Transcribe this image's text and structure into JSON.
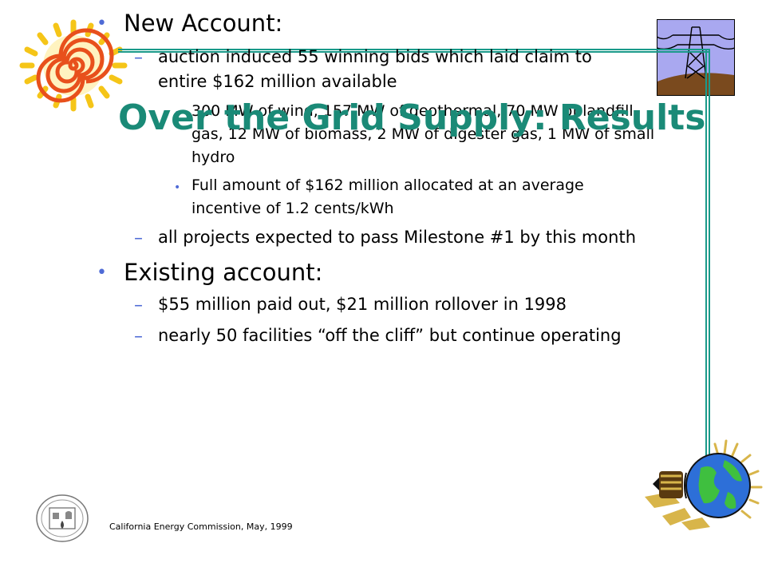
{
  "slide": {
    "title": "Over the Grid Supply: Results",
    "footer": "California Energy Commission, May, 1999",
    "accent_color": "#1a8a77",
    "bullet_color": "#4f6bd6"
  },
  "content": {
    "new_account": {
      "heading": "New Account:",
      "item1_line1": "auction induced 55 winning bids which laid claim to",
      "item1_line2": "entire $162 million available",
      "sub1_line1": "300 MW of wind, 157 MW of geothermal, 70 MW of landfill",
      "sub1_line2": "gas, 12 MW of biomass, 2 MW of digester gas, 1 MW of small",
      "sub1_line3": "hydro",
      "sub2_line1": "Full amount of $162 million allocated at an average",
      "sub2_line2": "incentive of 1.2 cents/kWh",
      "item2": "all projects expected to pass Milestone #1 by this month"
    },
    "existing_account": {
      "heading": "Existing account:",
      "item1": "$55 million paid out, $21 million rollover in 1998",
      "item2": "nearly 50 facilities “off the cliff” but continue operating"
    }
  },
  "icons": [
    "sun-icon",
    "power-tower-icon",
    "globe-lightbulb-icon",
    "energy-commission-seal-icon"
  ]
}
